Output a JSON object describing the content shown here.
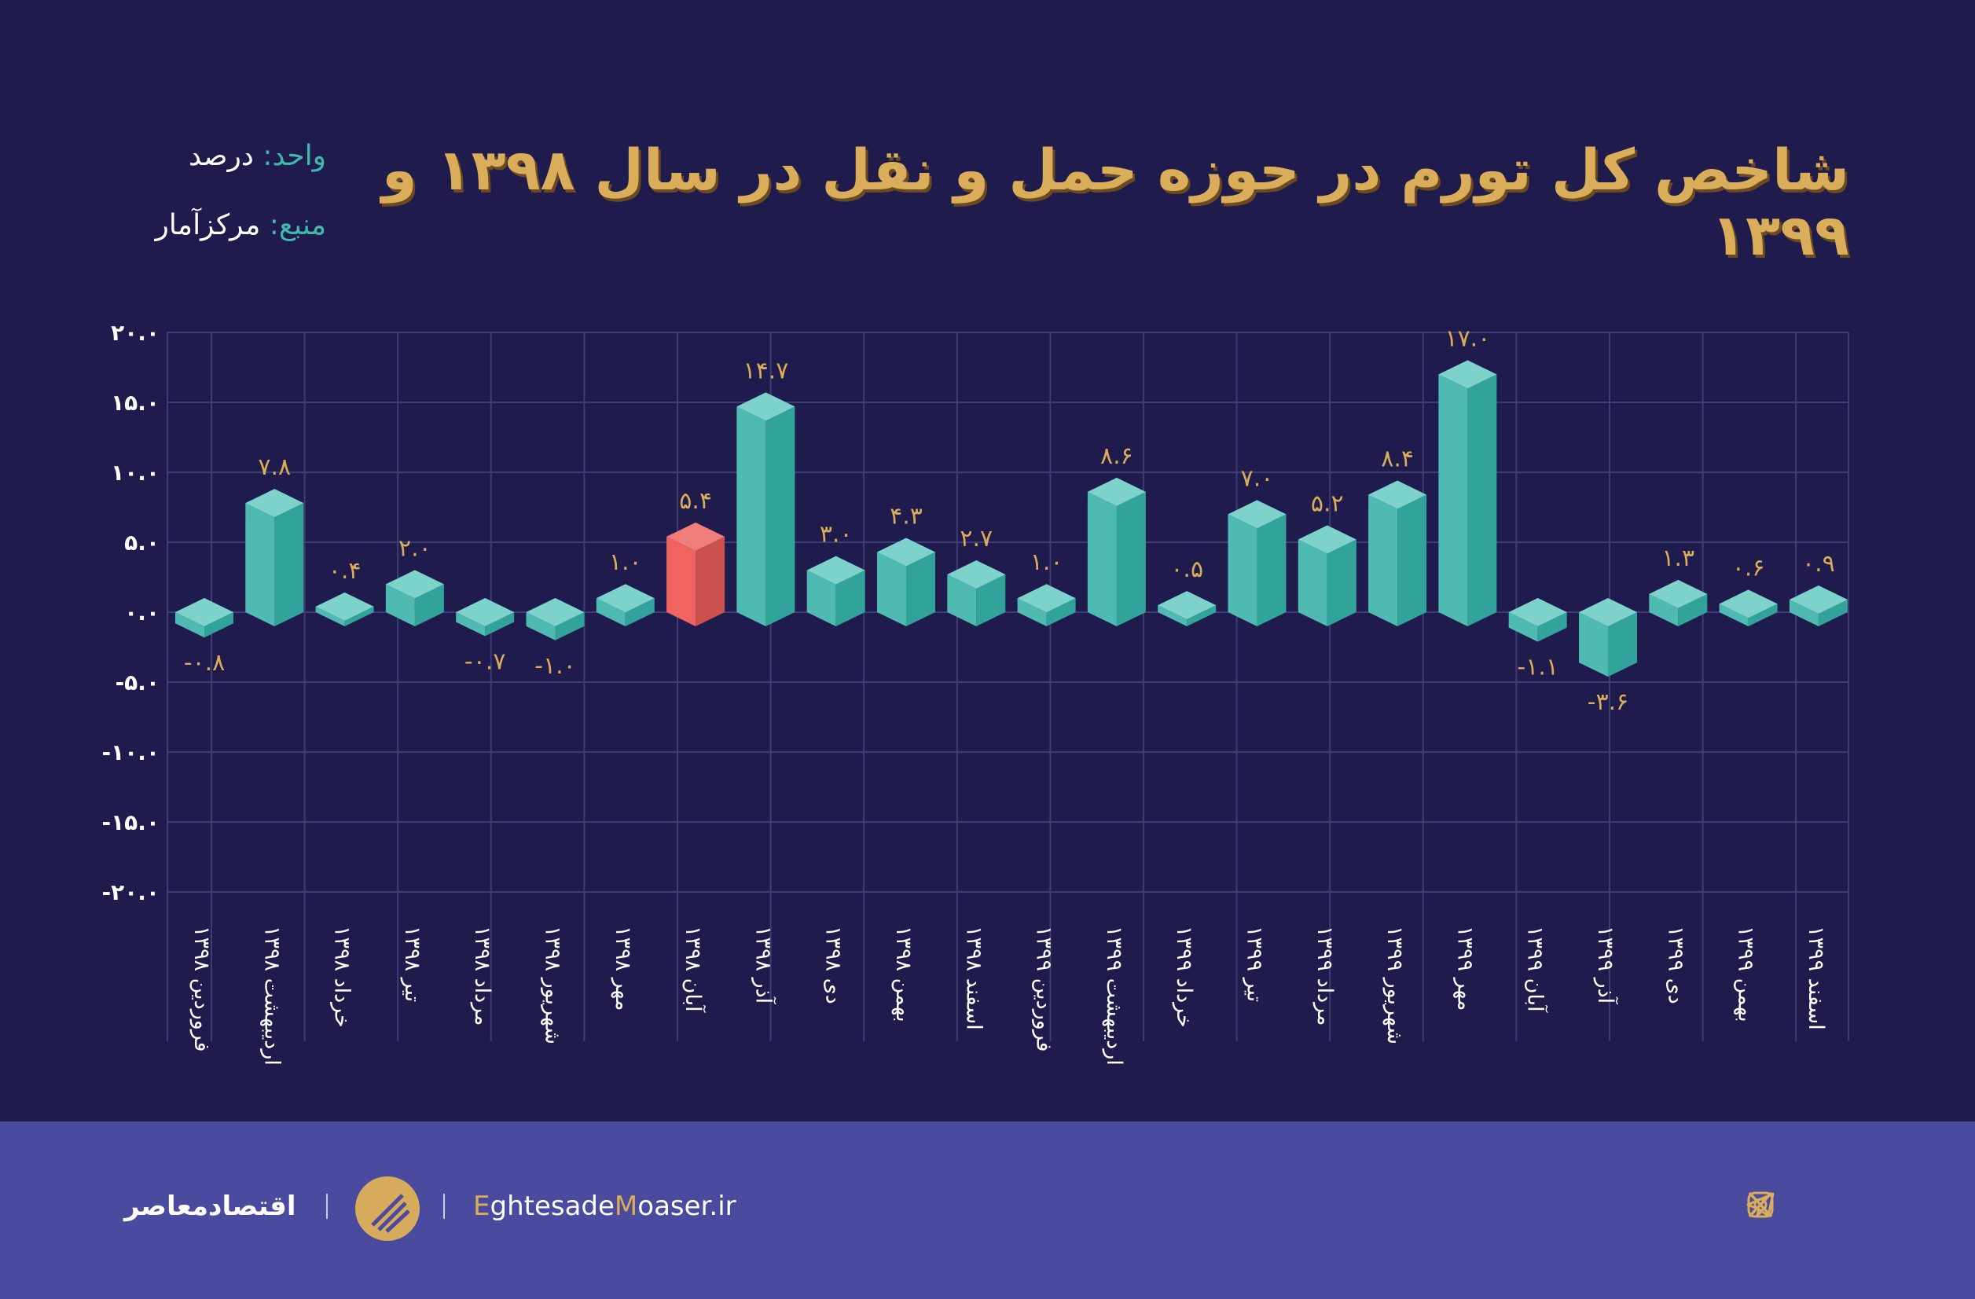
{
  "header": {
    "title": "شاخص کل تورم در حوزه حمل و نقل در سال ۱۳۹۸ و ۱۳۹۹",
    "unit_key": "واحد:",
    "unit_value": "درصد",
    "source_key": "منبع:",
    "source_value": "مرکزآمار"
  },
  "footer": {
    "brand_fa": "اقتصادمعاصر",
    "site_first": "E",
    "site_mid1": "ghtesade",
    "site_m": "M",
    "site_rest": "oaser.ir",
    "social_icons": [
      "telegram-icon",
      "instagram-icon",
      "x-icon"
    ]
  },
  "colors": {
    "bar": "#4fbab2",
    "bar_dark": "#32a39b",
    "bar_top": "#7dd3cc",
    "highlight": "#ef6461",
    "highlight_dark": "#c9504d",
    "highlight_top": "#f07d79",
    "label": "#d9ad5a",
    "grid": "#3e3c75",
    "background": "#1f1c4d"
  },
  "chart_data": {
    "type": "bar",
    "ylim": [
      -20,
      20
    ],
    "grid": true,
    "yticks": [
      20,
      15,
      10,
      5,
      0,
      -5,
      -10,
      -15,
      -20
    ],
    "ytick_labels": [
      "۲۰.۰",
      "۱۵.۰",
      "۱۰.۰",
      "۵.۰",
      "۰.۰",
      "-۵.۰",
      "-۱۰.۰",
      "-۱۵.۰",
      "-۲۰.۰"
    ],
    "categories": [
      "فروردین ۱۳۹۸",
      "اردیبهشت ۱۳۹۸",
      "خرداد ۱۳۹۸",
      "تیر ۱۳۹۸",
      "مرداد ۱۳۹۸",
      "شهریور ۱۳۹۸",
      "مهر ۱۳۹۸",
      "آبان ۱۳۹۸",
      "آذر ۱۳۹۸",
      "دی ۱۳۹۸",
      "بهمن ۱۳۹۸",
      "اسفند ۱۳۹۸",
      "فروردین ۱۳۹۹",
      "اردیبهشت ۱۳۹۹",
      "خرداد ۱۳۹۹",
      "تیر ۱۳۹۹",
      "مرداد ۱۳۹۹",
      "شهریور ۱۳۹۹",
      "مهر ۱۳۹۹",
      "آبان ۱۳۹۹",
      "آذر ۱۳۹۹",
      "دی ۱۳۹۹",
      "بهمن ۱۳۹۹",
      "اسفند ۱۳۹۹"
    ],
    "values": [
      -0.8,
      7.8,
      0.4,
      2.0,
      -0.7,
      -1.0,
      1.0,
      5.4,
      14.7,
      3.0,
      4.3,
      2.7,
      1.0,
      8.6,
      0.5,
      7.0,
      5.2,
      8.4,
      17.0,
      -1.1,
      -3.6,
      1.3,
      0.6,
      0.9
    ],
    "value_labels": [
      "-۰.۸",
      "۷.۸",
      "۰.۴",
      "۲.۰",
      "-۰.۷",
      "-۱.۰",
      "۱.۰",
      "۵.۴",
      "۱۴.۷",
      "۳.۰",
      "۴.۳",
      "۲.۷",
      "۱.۰",
      "۸.۶",
      "۰.۵",
      "۷.۰",
      "۵.۲",
      "۸.۴",
      "۱۷.۰",
      "-۱.۱",
      "-۳.۶",
      "۱.۳",
      "۰.۶",
      "۰.۹"
    ],
    "highlight_index": 7
  }
}
